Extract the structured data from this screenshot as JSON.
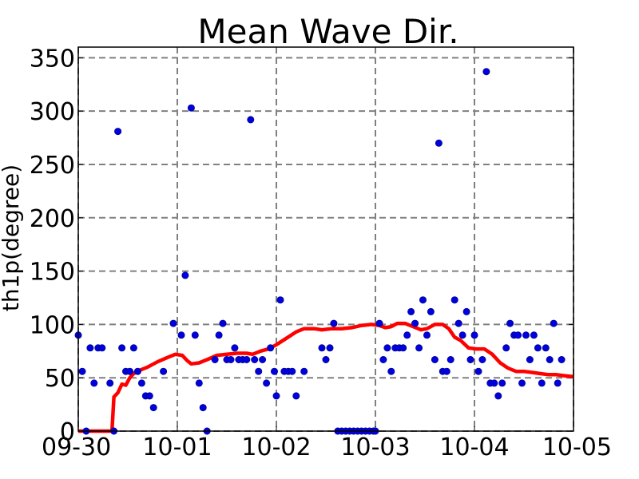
{
  "chart_data": {
    "type": "scatter",
    "title": "Mean Wave Dir.",
    "ylabel": "th1p(degree)",
    "xlabel": "",
    "x_tick_labels": [
      "09-30",
      "10-01",
      "10-02",
      "10-03",
      "10-04",
      "10-05"
    ],
    "y_ticks": [
      0,
      50,
      100,
      150,
      200,
      250,
      300,
      350
    ],
    "xlim": [
      "09-30",
      "10-05"
    ],
    "ylim": [
      0,
      360
    ],
    "grid": true,
    "x_unit": "days",
    "series": [
      {
        "kind": "scatter",
        "color": "#0000dd",
        "points": [
          [
            0.0,
            90
          ],
          [
            0.04,
            56
          ],
          [
            0.08,
            0
          ],
          [
            0.12,
            78
          ],
          [
            0.16,
            45
          ],
          [
            0.2,
            78
          ],
          [
            0.24,
            78
          ],
          [
            0.32,
            45
          ],
          [
            0.36,
            0
          ],
          [
            0.4,
            281
          ],
          [
            0.44,
            78
          ],
          [
            0.48,
            56
          ],
          [
            0.52,
            56
          ],
          [
            0.56,
            78
          ],
          [
            0.6,
            56
          ],
          [
            0.64,
            45
          ],
          [
            0.68,
            33
          ],
          [
            0.72,
            33
          ],
          [
            0.76,
            22
          ],
          [
            0.86,
            56
          ],
          [
            0.96,
            101
          ],
          [
            1.04,
            90
          ],
          [
            1.08,
            146
          ],
          [
            1.14,
            303
          ],
          [
            1.18,
            90
          ],
          [
            1.22,
            45
          ],
          [
            1.26,
            22
          ],
          [
            1.3,
            0
          ],
          [
            1.38,
            67
          ],
          [
            1.42,
            90
          ],
          [
            1.46,
            101
          ],
          [
            1.5,
            67
          ],
          [
            1.54,
            67
          ],
          [
            1.58,
            78
          ],
          [
            1.62,
            67
          ],
          [
            1.66,
            67
          ],
          [
            1.7,
            67
          ],
          [
            1.74,
            292
          ],
          [
            1.78,
            67
          ],
          [
            1.82,
            56
          ],
          [
            1.86,
            67
          ],
          [
            1.9,
            45
          ],
          [
            1.94,
            78
          ],
          [
            1.98,
            56
          ],
          [
            2.0,
            33
          ],
          [
            2.04,
            123
          ],
          [
            2.08,
            56
          ],
          [
            2.12,
            56
          ],
          [
            2.16,
            56
          ],
          [
            2.2,
            33
          ],
          [
            2.28,
            56
          ],
          [
            2.46,
            78
          ],
          [
            2.5,
            67
          ],
          [
            2.54,
            78
          ],
          [
            2.58,
            101
          ],
          [
            2.62,
            0
          ],
          [
            2.66,
            0
          ],
          [
            2.7,
            0
          ],
          [
            2.74,
            0
          ],
          [
            2.78,
            0
          ],
          [
            2.82,
            0
          ],
          [
            2.86,
            0
          ],
          [
            2.9,
            0
          ],
          [
            2.94,
            0
          ],
          [
            2.98,
            0
          ],
          [
            3.0,
            0
          ],
          [
            3.04,
            101
          ],
          [
            3.08,
            67
          ],
          [
            3.12,
            78
          ],
          [
            3.16,
            56
          ],
          [
            3.2,
            78
          ],
          [
            3.24,
            78
          ],
          [
            3.28,
            78
          ],
          [
            3.32,
            90
          ],
          [
            3.36,
            112
          ],
          [
            3.4,
            101
          ],
          [
            3.44,
            78
          ],
          [
            3.48,
            123
          ],
          [
            3.52,
            90
          ],
          [
            3.56,
            112
          ],
          [
            3.6,
            67
          ],
          [
            3.64,
            270
          ],
          [
            3.68,
            56
          ],
          [
            3.72,
            56
          ],
          [
            3.76,
            67
          ],
          [
            3.8,
            123
          ],
          [
            3.84,
            101
          ],
          [
            3.88,
            90
          ],
          [
            3.92,
            112
          ],
          [
            3.96,
            67
          ],
          [
            4.0,
            90
          ],
          [
            4.04,
            56
          ],
          [
            4.08,
            67
          ],
          [
            4.12,
            337
          ],
          [
            4.16,
            45
          ],
          [
            4.2,
            45
          ],
          [
            4.24,
            33
          ],
          [
            4.28,
            45
          ],
          [
            4.32,
            78
          ],
          [
            4.36,
            101
          ],
          [
            4.4,
            90
          ],
          [
            4.44,
            90
          ],
          [
            4.48,
            45
          ],
          [
            4.52,
            90
          ],
          [
            4.56,
            67
          ],
          [
            4.6,
            90
          ],
          [
            4.64,
            78
          ],
          [
            4.68,
            45
          ],
          [
            4.72,
            78
          ],
          [
            4.76,
            67
          ],
          [
            4.8,
            101
          ],
          [
            4.84,
            45
          ],
          [
            4.88,
            67
          ]
        ]
      },
      {
        "kind": "line",
        "color": "#ff0000",
        "points": [
          [
            0.0,
            0
          ],
          [
            0.34,
            0
          ],
          [
            0.36,
            32
          ],
          [
            0.4,
            36
          ],
          [
            0.44,
            44
          ],
          [
            0.48,
            43
          ],
          [
            0.52,
            50
          ],
          [
            0.56,
            54
          ],
          [
            0.62,
            57
          ],
          [
            0.7,
            60
          ],
          [
            0.8,
            65
          ],
          [
            0.9,
            69
          ],
          [
            0.98,
            72
          ],
          [
            1.05,
            71
          ],
          [
            1.1,
            66
          ],
          [
            1.14,
            63
          ],
          [
            1.22,
            64
          ],
          [
            1.3,
            67
          ],
          [
            1.4,
            71
          ],
          [
            1.5,
            72
          ],
          [
            1.6,
            73
          ],
          [
            1.7,
            73
          ],
          [
            1.76,
            72
          ],
          [
            1.84,
            75
          ],
          [
            1.92,
            77
          ],
          [
            2.0,
            81
          ],
          [
            2.1,
            87
          ],
          [
            2.2,
            93
          ],
          [
            2.28,
            96
          ],
          [
            2.38,
            96
          ],
          [
            2.46,
            95
          ],
          [
            2.56,
            96
          ],
          [
            2.66,
            96
          ],
          [
            2.76,
            97
          ],
          [
            2.86,
            99
          ],
          [
            2.96,
            100
          ],
          [
            3.04,
            99
          ],
          [
            3.1,
            97
          ],
          [
            3.16,
            98
          ],
          [
            3.22,
            101
          ],
          [
            3.3,
            101
          ],
          [
            3.38,
            98
          ],
          [
            3.46,
            95
          ],
          [
            3.52,
            96
          ],
          [
            3.6,
            100
          ],
          [
            3.68,
            100
          ],
          [
            3.74,
            96
          ],
          [
            3.8,
            88
          ],
          [
            3.86,
            85
          ],
          [
            3.94,
            78
          ],
          [
            4.02,
            77
          ],
          [
            4.1,
            77
          ],
          [
            4.18,
            72
          ],
          [
            4.26,
            64
          ],
          [
            4.34,
            59
          ],
          [
            4.42,
            56
          ],
          [
            4.5,
            56
          ],
          [
            4.58,
            55
          ],
          [
            4.66,
            54
          ],
          [
            4.74,
            53
          ],
          [
            4.82,
            53
          ],
          [
            4.9,
            52
          ],
          [
            5.0,
            51
          ]
        ]
      }
    ]
  }
}
